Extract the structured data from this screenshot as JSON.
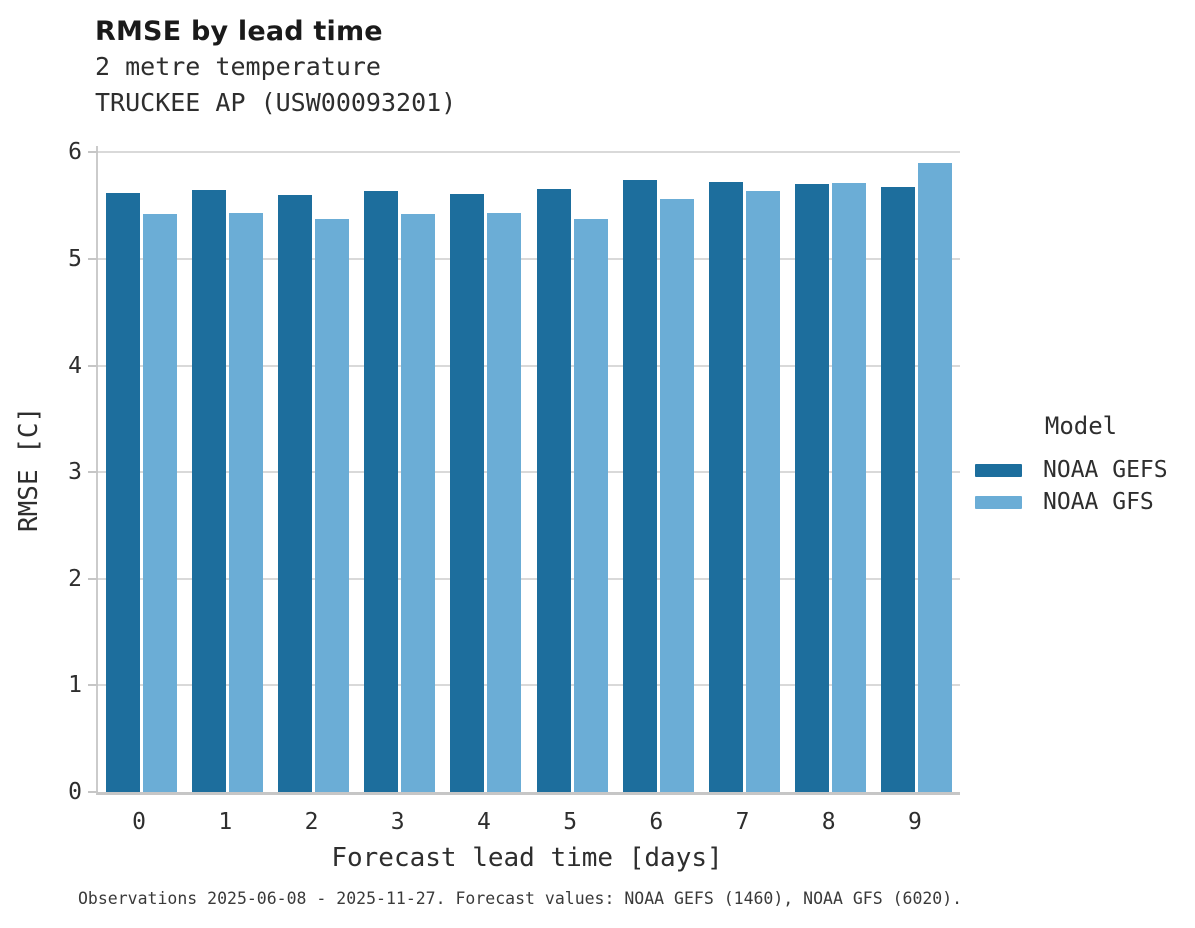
{
  "header": {
    "title": "RMSE by lead time",
    "subtitle1": "2 metre temperature",
    "subtitle2": "TRUCKEE AP (USW00093201)"
  },
  "chart_data": {
    "type": "bar",
    "title": "RMSE by lead time",
    "subtitle": [
      "2 metre temperature",
      "TRUCKEE AP (USW00093201)"
    ],
    "categories": [
      "0",
      "1",
      "2",
      "3",
      "4",
      "5",
      "6",
      "7",
      "8",
      "9"
    ],
    "series": [
      {
        "name": "NOAA GEFS",
        "color": "#1d6e9d",
        "values": [
          5.62,
          5.65,
          5.6,
          5.64,
          5.61,
          5.66,
          5.74,
          5.72,
          5.7,
          5.68
        ]
      },
      {
        "name": "NOAA GFS",
        "color": "#6badd6",
        "values": [
          5.42,
          5.43,
          5.38,
          5.42,
          5.43,
          5.38,
          5.56,
          5.64,
          5.71,
          5.9
        ]
      }
    ],
    "xlabel": "Forecast lead time [days]",
    "ylabel": "RMSE [C]",
    "ylim": [
      0,
      6
    ],
    "yticks": [
      0,
      1,
      2,
      3,
      4,
      5,
      6
    ],
    "grid": true,
    "legend_title": "Model",
    "legend_position": "right",
    "gridline_color": "#d9d9d9",
    "axis_color": "#c6c6c6"
  },
  "legend": {
    "title": "Model",
    "items": [
      {
        "label": "NOAA GEFS",
        "color": "#1d6e9d"
      },
      {
        "label": "NOAA GFS",
        "color": "#6badd6"
      }
    ]
  },
  "caption": "Observations 2025-06-08 - 2025-11-27. Forecast values: NOAA GEFS (1460), NOAA GFS (6020)."
}
